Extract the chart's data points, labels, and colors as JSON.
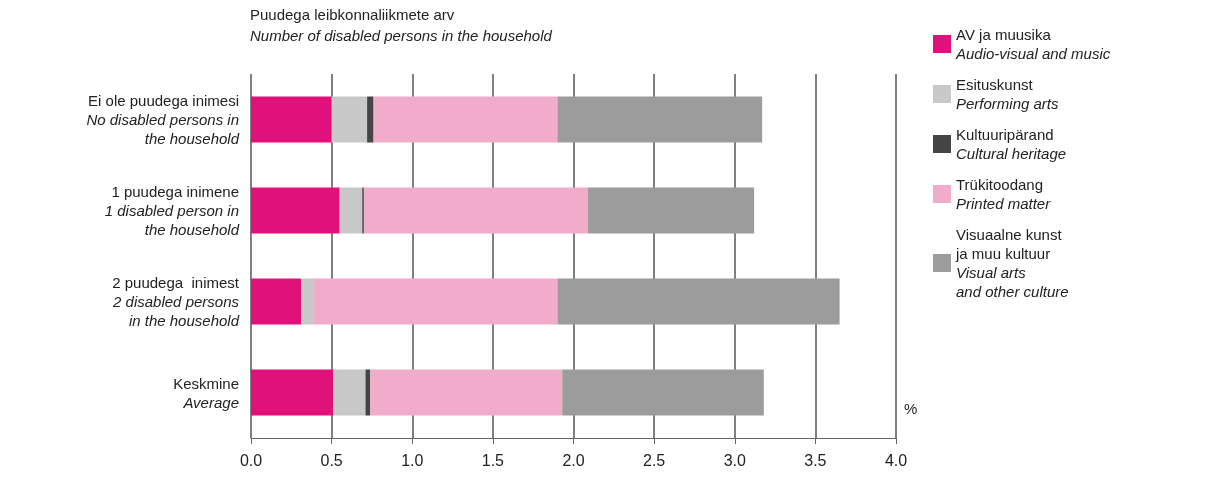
{
  "chart_data": {
    "type": "bar",
    "orientation": "horizontal",
    "stacked": true,
    "title": "Puudega leibkonnaliikmete arv",
    "subtitle": "Number of disabled persons in the household",
    "xlabel": "%",
    "categories": [
      "Ei ole puudega inimesi\nNo disabled persons in\nthe household",
      "1 puudega inimene\n1 disabled person in\nthe household",
      "2 puudega  inimest\n2 disabled persons\nin the household",
      "Keskmine\nAverage"
    ],
    "series": [
      {
        "name": "AV ja muusika\nAudio-visual and music",
        "color": "#e0117a",
        "values": [
          0.5,
          0.55,
          0.31,
          0.51
        ]
      },
      {
        "name": "Esituskunst\nPerforming arts",
        "color": "#c8c8c8",
        "values": [
          0.22,
          0.14,
          0.08,
          0.2
        ]
      },
      {
        "name": "Kultuuripärand\nCultural heritage",
        "color": "#444444",
        "values": [
          0.04,
          0.01,
          0,
          0.03
        ]
      },
      {
        "name": "Trükitoodang\nPrinted matter",
        "color": "#f2accb",
        "values": [
          1.14,
          1.39,
          1.51,
          1.19
        ]
      },
      {
        "name": "Visuaalne kunst\nja muu kultuur\nVisual arts\nand other culture",
        "color": "#9c9c9c",
        "values": [
          1.27,
          1.03,
          1.75,
          1.25
        ]
      }
    ],
    "xlim": [
      0,
      4
    ],
    "xticks": [
      {
        "value": 0,
        "label": "0.0"
      },
      0.5,
      {
        "value": 1,
        "label": "1.0"
      },
      1.5,
      {
        "value": 2,
        "label": "2.0"
      },
      2.5,
      {
        "value": 3,
        "label": "3.0"
      },
      3.5,
      {
        "value": 4,
        "label": "4.0"
      }
    ],
    "grid": "x",
    "legend": "right"
  }
}
